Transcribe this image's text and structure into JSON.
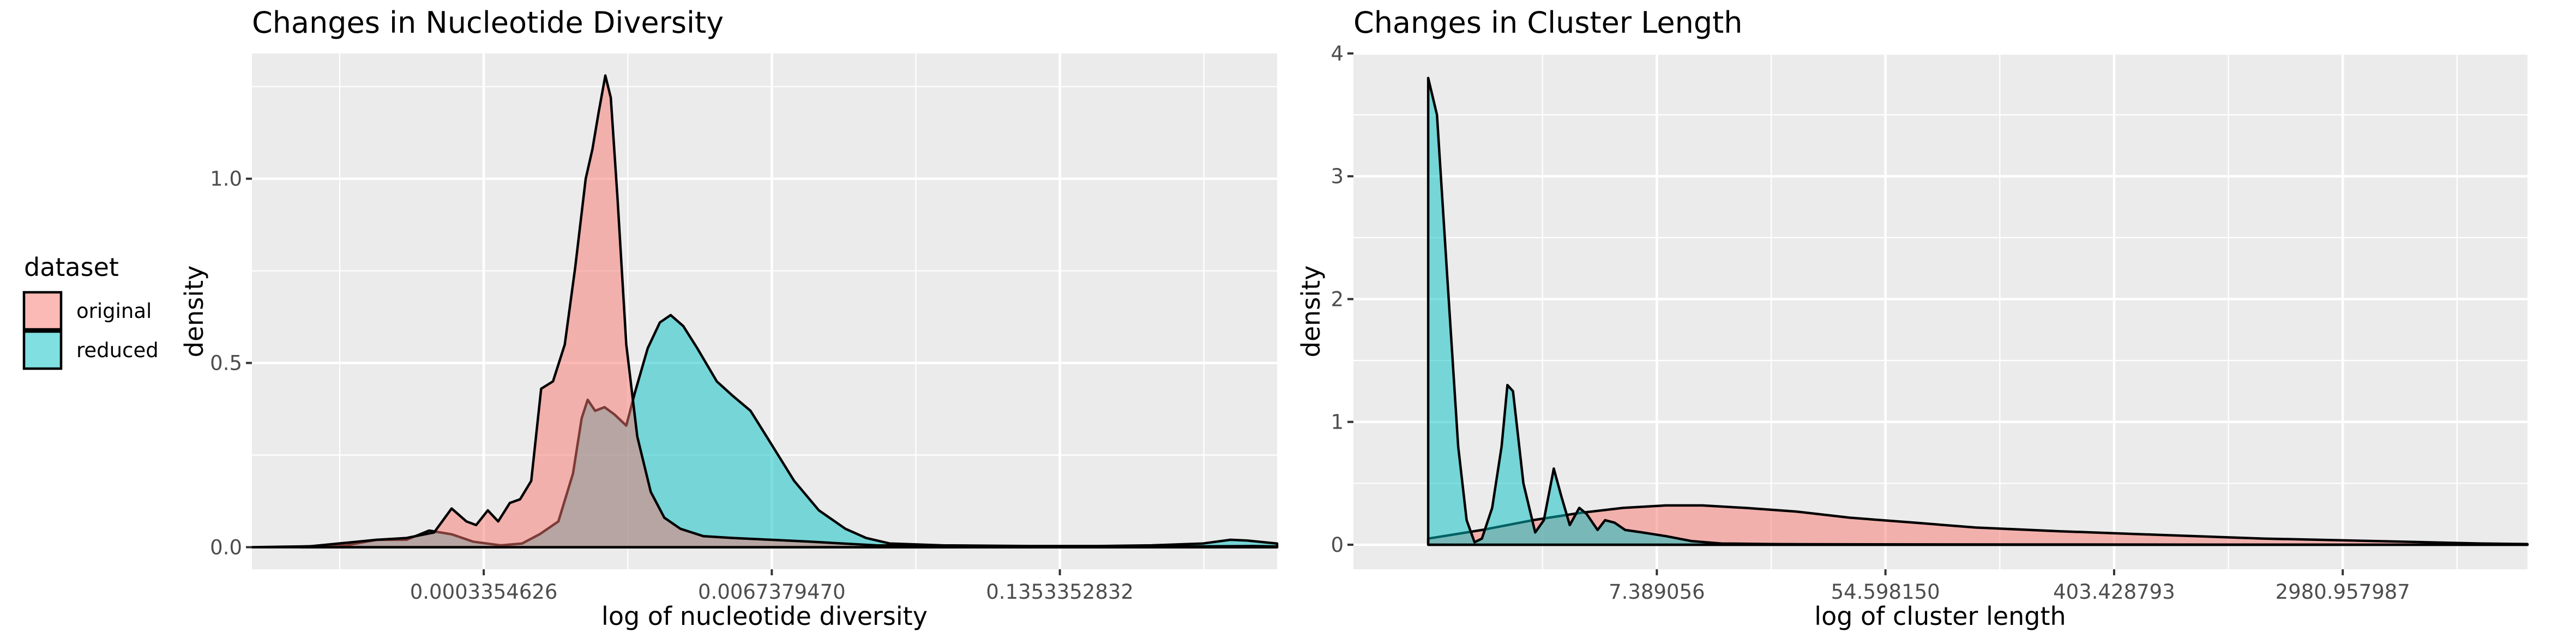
{
  "legend": {
    "title": "dataset",
    "items": [
      {
        "label": "original",
        "color": "#F8766D"
      },
      {
        "label": "reduced",
        "color": "#00BFC4"
      }
    ]
  },
  "chart_data": [
    {
      "type": "area",
      "title": "Changes in Nucleotide Diversity",
      "xlabel": "log of nucleotide diversity",
      "ylabel": "density",
      "x_scale": "log",
      "x_ticks": [
        "0.0003354626",
        "0.0067379470",
        "0.1353352832"
      ],
      "x_tick_values": [
        0.0003354626,
        0.006737947,
        0.1353352832
      ],
      "y_ticks": [
        "0.0",
        "0.5",
        "1.0"
      ],
      "y_tick_values": [
        0,
        0.5,
        1.0
      ],
      "ylim": [
        -0.06,
        1.34
      ],
      "grid": true,
      "series": [
        {
          "name": "reduced",
          "color": "#00BFC4",
          "points": [
            [
              3e-05,
              0.0
            ],
            [
              5e-05,
              0.002
            ],
            [
              8e-05,
              0.005
            ],
            [
              0.00011,
              0.02
            ],
            [
              0.00015,
              0.02
            ],
            [
              0.00019,
              0.045
            ],
            [
              0.00024,
              0.035
            ],
            [
              0.0003,
              0.015
            ],
            [
              0.0004,
              0.005
            ],
            [
              0.0005,
              0.01
            ],
            [
              0.0006,
              0.035
            ],
            [
              0.00073,
              0.07
            ],
            [
              0.00085,
              0.2
            ],
            [
              0.00093,
              0.35
            ],
            [
              0.00099,
              0.4
            ],
            [
              0.00107,
              0.37
            ],
            [
              0.00118,
              0.38
            ],
            [
              0.00131,
              0.36
            ],
            [
              0.00148,
              0.33
            ],
            [
              0.00162,
              0.42
            ],
            [
              0.00185,
              0.54
            ],
            [
              0.0021,
              0.61
            ],
            [
              0.00235,
              0.63
            ],
            [
              0.00268,
              0.6
            ],
            [
              0.0031,
              0.54
            ],
            [
              0.0038,
              0.45
            ],
            [
              0.0045,
              0.41
            ],
            [
              0.0054,
              0.37
            ],
            [
              0.0067,
              0.28
            ],
            [
              0.0085,
              0.18
            ],
            [
              0.011,
              0.1
            ],
            [
              0.0145,
              0.05
            ],
            [
              0.018,
              0.025
            ],
            [
              0.023,
              0.01
            ],
            [
              0.04,
              0.005
            ],
            [
              0.1,
              0.003
            ],
            [
              0.2,
              0.003
            ],
            [
              0.35,
              0.005
            ],
            [
              0.6,
              0.01
            ],
            [
              0.8,
              0.02
            ],
            [
              0.95,
              0.018
            ],
            [
              1.3,
              0.01
            ]
          ]
        },
        {
          "name": "original",
          "color": "#F8766D",
          "points": [
            [
              5e-05,
              0.0
            ],
            [
              0.00011,
              0.02
            ],
            [
              0.00015,
              0.025
            ],
            [
              0.0002,
              0.04
            ],
            [
              0.00024,
              0.105
            ],
            [
              0.00028,
              0.07
            ],
            [
              0.00031,
              0.06
            ],
            [
              0.00035,
              0.1
            ],
            [
              0.00039,
              0.07
            ],
            [
              0.00044,
              0.12
            ],
            [
              0.00049,
              0.13
            ],
            [
              0.00055,
              0.18
            ],
            [
              0.00061,
              0.43
            ],
            [
              0.00069,
              0.45
            ],
            [
              0.00078,
              0.55
            ],
            [
              0.00087,
              0.76
            ],
            [
              0.00097,
              1.0
            ],
            [
              0.00104,
              1.08
            ],
            [
              0.00111,
              1.18
            ],
            [
              0.00119,
              1.28
            ],
            [
              0.00126,
              1.22
            ],
            [
              0.00135,
              0.95
            ],
            [
              0.00148,
              0.55
            ],
            [
              0.00166,
              0.3
            ],
            [
              0.00191,
              0.15
            ],
            [
              0.0022,
              0.08
            ],
            [
              0.0026,
              0.05
            ],
            [
              0.0033,
              0.03
            ],
            [
              0.0045,
              0.025
            ],
            [
              0.0067,
              0.02
            ],
            [
              0.01,
              0.015
            ],
            [
              0.02,
              0.005
            ],
            [
              0.05,
              0.003
            ],
            [
              0.1,
              0.002
            ],
            [
              0.2,
              0.001
            ],
            [
              0.5,
              0.002
            ],
            [
              1.0,
              0.003
            ],
            [
              1.3,
              0.002
            ]
          ]
        }
      ]
    },
    {
      "type": "area",
      "title": "Changes in Cluster Length",
      "xlabel": "log of cluster length",
      "ylabel": "density",
      "x_scale": "log",
      "x_ticks": [
        "7.389056",
        "54.598150",
        "403.428793",
        "2980.957987"
      ],
      "x_tick_values": [
        7.389056,
        54.59815,
        403.428793,
        2980.957987
      ],
      "y_ticks": [
        "0",
        "1",
        "2",
        "3",
        "4"
      ],
      "y_tick_values": [
        0,
        1,
        2,
        3,
        4
      ],
      "ylim": [
        -0.2,
        4.0
      ],
      "grid": true,
      "series": [
        {
          "name": "original",
          "color": "#F8766D",
          "points": [
            [
              1.0,
              0.05
            ],
            [
              1.6,
              0.12
            ],
            [
              2.5,
              0.2
            ],
            [
              3.8,
              0.26
            ],
            [
              5.5,
              0.3
            ],
            [
              8.0,
              0.32
            ],
            [
              11,
              0.32
            ],
            [
              16,
              0.3
            ],
            [
              25,
              0.27
            ],
            [
              40,
              0.22
            ],
            [
              70,
              0.18
            ],
            [
              120,
              0.14
            ],
            [
              250,
              0.11
            ],
            [
              600,
              0.08
            ],
            [
              1500,
              0.05
            ],
            [
              4000,
              0.03
            ],
            [
              10000,
              0.01
            ],
            [
              15000,
              0.005
            ]
          ]
        },
        {
          "name": "reduced",
          "color": "#00BFC4",
          "points": [
            [
              1.0,
              0.0
            ],
            [
              1.0,
              3.8
            ],
            [
              1.08,
              3.5
            ],
            [
              1.18,
              2.2
            ],
            [
              1.3,
              0.8
            ],
            [
              1.4,
              0.2
            ],
            [
              1.5,
              0.02
            ],
            [
              1.6,
              0.05
            ],
            [
              1.75,
              0.3
            ],
            [
              1.9,
              0.8
            ],
            [
              2.0,
              1.3
            ],
            [
              2.1,
              1.25
            ],
            [
              2.3,
              0.5
            ],
            [
              2.55,
              0.1
            ],
            [
              2.75,
              0.2
            ],
            [
              3.0,
              0.62
            ],
            [
              3.2,
              0.4
            ],
            [
              3.45,
              0.16
            ],
            [
              3.75,
              0.3
            ],
            [
              4.0,
              0.25
            ],
            [
              4.4,
              0.12
            ],
            [
              4.7,
              0.2
            ],
            [
              5.1,
              0.18
            ],
            [
              5.6,
              0.12
            ],
            [
              6.5,
              0.1
            ],
            [
              8.0,
              0.07
            ],
            [
              10,
              0.03
            ],
            [
              13,
              0.01
            ],
            [
              20,
              0.005
            ],
            [
              50,
              0.003
            ],
            [
              200,
              0.002
            ],
            [
              1000,
              0.001
            ],
            [
              15000,
              0.0
            ]
          ]
        }
      ]
    }
  ]
}
